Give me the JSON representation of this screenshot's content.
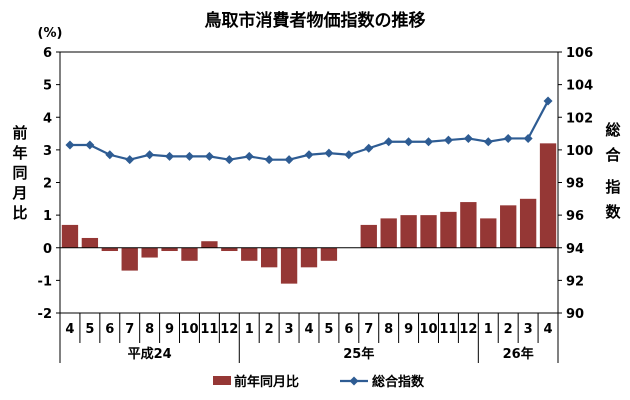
{
  "chart_data": {
    "type": "bar+line",
    "title": "鳥取市消費者物価指数の推移",
    "left_axis": {
      "unit": "(%)",
      "label": "前年同月比",
      "ylim": [
        -2,
        6
      ],
      "ticks": [
        -2,
        -1,
        0,
        1,
        2,
        3,
        4,
        5,
        6
      ],
      "tick_labels": [
        "-2",
        "-1",
        "0",
        "1",
        "2",
        "3",
        "4",
        "5",
        "6"
      ]
    },
    "right_axis": {
      "label": "総合指数",
      "ylim": [
        90,
        106
      ],
      "ticks": [
        90,
        92,
        94,
        96,
        98,
        100,
        102,
        104,
        106
      ]
    },
    "categories": [
      "4",
      "5",
      "6",
      "7",
      "8",
      "9",
      "10",
      "11",
      "12",
      "1",
      "2",
      "3",
      "4",
      "5",
      "6",
      "7",
      "8",
      "9",
      "10",
      "11",
      "12",
      "1",
      "2",
      "3",
      "4"
    ],
    "year_groups": [
      {
        "label": "平成24",
        "from": 0,
        "to": 8
      },
      {
        "label": "25年",
        "from": 9,
        "to": 20
      },
      {
        "label": "26年",
        "from": 21,
        "to": 24
      }
    ],
    "series": [
      {
        "name": "前年同月比",
        "kind": "bar",
        "axis": "left",
        "color": "#953735",
        "values": [
          0.7,
          0.3,
          -0.1,
          -0.7,
          -0.3,
          -0.1,
          -0.4,
          0.2,
          -0.1,
          -0.4,
          -0.6,
          -1.1,
          -0.6,
          -0.4,
          0.0,
          0.7,
          0.9,
          1.0,
          1.0,
          1.1,
          1.4,
          0.9,
          1.3,
          1.5,
          3.2
        ]
      },
      {
        "name": "総合指数",
        "kind": "line",
        "axis": "right",
        "color": "#2E5C93",
        "values": [
          100.3,
          100.3,
          99.7,
          99.4,
          99.7,
          99.6,
          99.6,
          99.6,
          99.4,
          99.6,
          99.4,
          99.4,
          99.7,
          99.8,
          99.7,
          100.1,
          100.5,
          100.5,
          100.5,
          100.6,
          100.7,
          100.5,
          100.7,
          100.7,
          103.0
        ]
      }
    ],
    "legend": {
      "position": "bottom",
      "items": [
        "前年同月比",
        "総合指数"
      ]
    },
    "grid": false
  }
}
